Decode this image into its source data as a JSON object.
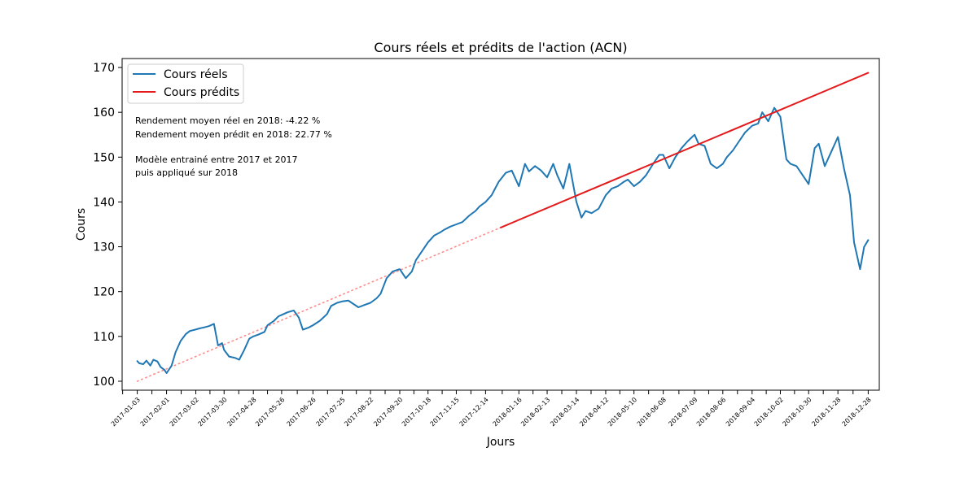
{
  "chart_data": {
    "type": "line",
    "title": "Cours réels et prédits de l'action (ACN)",
    "xlabel": "Jours",
    "ylabel": "Cours",
    "ylim": [
      98,
      172
    ],
    "yticks": [
      100,
      110,
      120,
      130,
      140,
      150,
      160,
      170
    ],
    "xlim": [
      "2016-12-19",
      "2019-01-08"
    ],
    "xtick_labels": [
      "2017-01-03",
      "2017-02-01",
      "2017-03-02",
      "2017-03-30",
      "2017-04-28",
      "2017-05-26",
      "2017-06-26",
      "2017-07-25",
      "2017-08-22",
      "2017-09-20",
      "2017-10-18",
      "2017-11-15",
      "2017-12-14",
      "2018-01-16",
      "2018-02-13",
      "2018-03-14",
      "2018-04-12",
      "2018-05-10",
      "2018-06-08",
      "2018-07-09",
      "2018-08-06",
      "2018-09-04",
      "2018-10-02",
      "2018-10-30",
      "2018-11-28",
      "2018-12-28"
    ],
    "grid": false,
    "legend_position": "upper-left",
    "series": [
      {
        "name": "Cours réels",
        "color": "#1f77b4",
        "style": "solid",
        "x": [
          "2017-01-03",
          "2017-01-05",
          "2017-01-09",
          "2017-01-12",
          "2017-01-16",
          "2017-01-19",
          "2017-01-23",
          "2017-01-26",
          "2017-01-30",
          "2017-02-01",
          "2017-02-06",
          "2017-02-10",
          "2017-02-15",
          "2017-02-20",
          "2017-02-24",
          "2017-03-01",
          "2017-03-06",
          "2017-03-10",
          "2017-03-15",
          "2017-03-20",
          "2017-03-24",
          "2017-03-28",
          "2017-03-30",
          "2017-04-04",
          "2017-04-10",
          "2017-04-14",
          "2017-04-19",
          "2017-04-24",
          "2017-04-28",
          "2017-05-03",
          "2017-05-09",
          "2017-05-12",
          "2017-05-18",
          "2017-05-23",
          "2017-05-26",
          "2017-06-01",
          "2017-06-07",
          "2017-06-12",
          "2017-06-16",
          "2017-06-22",
          "2017-06-26",
          "2017-07-03",
          "2017-07-10",
          "2017-07-14",
          "2017-07-20",
          "2017-07-25",
          "2017-07-31",
          "2017-08-04",
          "2017-08-10",
          "2017-08-16",
          "2017-08-22",
          "2017-08-28",
          "2017-09-01",
          "2017-09-07",
          "2017-09-13",
          "2017-09-20",
          "2017-09-26",
          "2017-10-02",
          "2017-10-06",
          "2017-10-12",
          "2017-10-18",
          "2017-10-24",
          "2017-10-30",
          "2017-11-03",
          "2017-11-09",
          "2017-11-15",
          "2017-11-21",
          "2017-11-28",
          "2017-12-04",
          "2017-12-08",
          "2017-12-14",
          "2017-12-20",
          "2017-12-27",
          "2018-01-03",
          "2018-01-09",
          "2018-01-16",
          "2018-01-22",
          "2018-01-26",
          "2018-02-01",
          "2018-02-07",
          "2018-02-13",
          "2018-02-19",
          "2018-02-23",
          "2018-03-01",
          "2018-03-07",
          "2018-03-14",
          "2018-03-19",
          "2018-03-23",
          "2018-03-29",
          "2018-04-05",
          "2018-04-12",
          "2018-04-18",
          "2018-04-24",
          "2018-04-30",
          "2018-05-04",
          "2018-05-10",
          "2018-05-16",
          "2018-05-22",
          "2018-05-29",
          "2018-06-04",
          "2018-06-08",
          "2018-06-14",
          "2018-06-20",
          "2018-06-26",
          "2018-07-02",
          "2018-07-09",
          "2018-07-13",
          "2018-07-19",
          "2018-07-25",
          "2018-07-31",
          "2018-08-06",
          "2018-08-10",
          "2018-08-16",
          "2018-08-22",
          "2018-08-28",
          "2018-09-04",
          "2018-09-10",
          "2018-09-14",
          "2018-09-20",
          "2018-09-26",
          "2018-10-02",
          "2018-10-08",
          "2018-10-12",
          "2018-10-18",
          "2018-10-24",
          "2018-10-30",
          "2018-11-05",
          "2018-11-09",
          "2018-11-15",
          "2018-11-21",
          "2018-11-28",
          "2018-12-04",
          "2018-12-10",
          "2018-12-14",
          "2018-12-20",
          "2018-12-24",
          "2018-12-28"
        ],
        "values": [
          104.5,
          104.0,
          103.8,
          104.6,
          103.5,
          104.8,
          104.4,
          103.2,
          102.5,
          101.8,
          103.5,
          106.5,
          109.0,
          110.5,
          111.2,
          111.5,
          111.8,
          112.0,
          112.3,
          112.8,
          108.0,
          108.5,
          107.0,
          105.5,
          105.2,
          104.8,
          107.0,
          109.5,
          110.0,
          110.4,
          111.0,
          112.5,
          113.4,
          114.5,
          114.8,
          115.4,
          115.8,
          114.2,
          111.5,
          112.0,
          112.5,
          113.5,
          115.0,
          116.8,
          117.5,
          117.8,
          118.0,
          117.4,
          116.5,
          117.0,
          117.5,
          118.5,
          119.5,
          123.0,
          124.5,
          125.0,
          123.0,
          124.5,
          127.0,
          129.0,
          131.0,
          132.5,
          133.2,
          133.8,
          134.5,
          135.0,
          135.5,
          137.0,
          138.0,
          139.0,
          140.0,
          141.5,
          144.5,
          146.5,
          147.0,
          143.5,
          148.5,
          146.8,
          148.0,
          147.0,
          145.5,
          148.5,
          146.0,
          143.0,
          148.5,
          140.0,
          136.5,
          138.0,
          137.5,
          138.5,
          141.5,
          143.0,
          143.5,
          144.5,
          145.0,
          143.5,
          144.5,
          146.0,
          148.5,
          150.5,
          150.5,
          147.5,
          150.0,
          152.0,
          153.5,
          155.0,
          153.0,
          152.5,
          148.5,
          147.5,
          148.5,
          150.0,
          151.5,
          153.5,
          155.5,
          157.0,
          157.5,
          160.0,
          158.0,
          161.0,
          159.0,
          149.5,
          148.5,
          148.0,
          146.0,
          144.0,
          152.0,
          153.0,
          148.0,
          151.0,
          154.5,
          147.5,
          141.5,
          131.0,
          125.0,
          130.0,
          131.5
        ]
      },
      {
        "name": "Cours prédits",
        "color": "#e41a1c",
        "style": "solid",
        "x": [
          "2017-12-29",
          "2018-12-28"
        ],
        "values": [
          134.3,
          168.8
        ]
      },
      {
        "color": "#ff7f7f",
        "style": "dotted",
        "x": [
          "2017-01-03",
          "2017-12-29"
        ],
        "values": [
          100.0,
          134.3
        ]
      }
    ],
    "annotations": [
      "Rendement moyen réel en 2018: -4.22 %",
      "Rendement moyen prédit en 2018: 22.77 %",
      "Modèle entrainé entre 2017 et 2017",
      "puis appliqué sur 2018"
    ]
  }
}
